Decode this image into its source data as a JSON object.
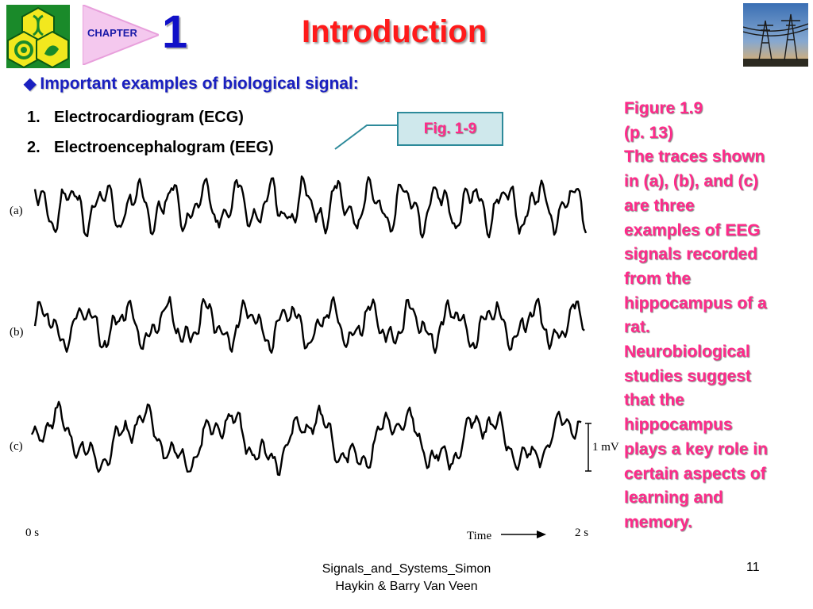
{
  "header": {
    "chapter_label": "CHAPTER",
    "chapter_number": "1",
    "title": "Introduction"
  },
  "subtitle": "Important examples of biological signal:",
  "list": [
    {
      "num": "1.",
      "text": "Electrocardiogram (ECG)"
    },
    {
      "num": "2.",
      "text": "Electroencephalogram (EEG)"
    }
  ],
  "fig_button": "Fig. 1-9",
  "caption_lines": [
    "Figure 1.9",
    "(p. 13)",
    "The traces shown",
    "in (a), (b), and (c)",
    "are three",
    "examples of EEG",
    "signals recorded",
    "from the",
    "hippocampus of a",
    "rat.",
    "Neurobiological",
    "studies suggest",
    "that the",
    "hippocampus",
    "plays a key role in",
    "certain aspects of",
    "learning and",
    "memory."
  ],
  "plot": {
    "trace_labels": [
      "(a)",
      "(b)",
      "(c)"
    ],
    "scale_label": "1 mV",
    "time_start": "0 s",
    "time_end": "2 s",
    "time_label": "Time"
  },
  "footer": {
    "source_line1": "Signals_and_Systems_Simon",
    "source_line2": "Haykin & Barry Van Veen",
    "page_number": "11"
  },
  "colors": {
    "title": "#ff1a1a",
    "subtitle": "#1a20c0",
    "caption": "#ff2a8a",
    "fig_box_bg": "#cfe8ec",
    "fig_box_border": "#2d8a9a"
  }
}
